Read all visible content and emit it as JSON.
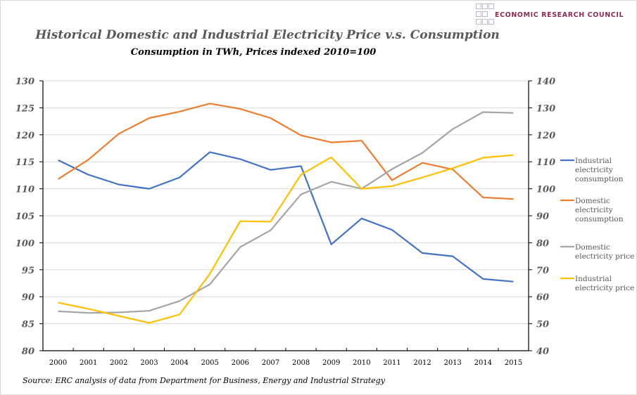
{
  "logo": {
    "text": "ECONOMIC RESEARCH COUNCIL"
  },
  "source": "Source: ERC analysis of data from Department for Business, Energy and Industrial Strategy",
  "chart_data": {
    "type": "line",
    "title": "Historical Domestic and Industrial Electricity Price v.s. Consumption",
    "subtitle": "Consumption in TWh, Prices indexed 2010=100",
    "xlabel": "",
    "ylabel": "",
    "grid": true,
    "legend_position": "right",
    "x": [
      "2000",
      "2001",
      "2002",
      "2003",
      "2004",
      "2005",
      "2006",
      "2007",
      "2008",
      "2009",
      "2010",
      "2011",
      "2012",
      "2013",
      "2014",
      "2015"
    ],
    "y_left": {
      "ylim": [
        80,
        130
      ],
      "ticks": [
        "80",
        "85",
        "90",
        "95",
        "100",
        "105",
        "110",
        "115",
        "120",
        "125",
        "130"
      ]
    },
    "y_right": {
      "ylim": [
        40,
        140
      ],
      "ticks": [
        "40",
        "50",
        "60",
        "70",
        "80",
        "90",
        "100",
        "110",
        "120",
        "130",
        "140"
      ]
    },
    "series": [
      {
        "name": "Industrial electricity consumption",
        "legend_lines": [
          "Industrial",
          "electricity",
          "consumption"
        ],
        "axis": "left",
        "color": "#4472c4",
        "values": [
          115.3,
          112.6,
          110.8,
          110.0,
          112.1,
          116.8,
          115.5,
          113.5,
          114.2,
          99.7,
          104.5,
          102.4,
          98.1,
          97.5,
          93.3,
          92.8
        ]
      },
      {
        "name": "Domestic electricity consumption",
        "legend_lines": [
          "Domestic",
          "electricity",
          "consumption"
        ],
        "axis": "left",
        "color": "#ed7d31",
        "values": [
          111.8,
          115.4,
          120.2,
          123.1,
          124.3,
          125.8,
          124.8,
          123.1,
          119.9,
          118.6,
          118.9,
          111.6,
          114.8,
          113.6,
          108.4,
          108.1
        ]
      },
      {
        "name": "Domestic electricity price",
        "legend_lines": [
          "Domestic",
          "electricity price"
        ],
        "axis": "right",
        "color": "#a5a5a5",
        "values": [
          54.6,
          54.0,
          54.2,
          54.8,
          58.4,
          64.6,
          78.4,
          84.6,
          97.9,
          102.6,
          100.0,
          107.3,
          113.3,
          122.1,
          128.4,
          128.1
        ]
      },
      {
        "name": "Industrial electricity price",
        "legend_lines": [
          "Industrial",
          "electricity price"
        ],
        "axis": "right",
        "color": "#ffc000",
        "values": [
          57.8,
          55.5,
          52.9,
          50.3,
          53.4,
          68.5,
          88.0,
          87.8,
          105.2,
          111.7,
          100.0,
          101.0,
          104.2,
          107.6,
          111.5,
          112.5
        ]
      }
    ]
  }
}
